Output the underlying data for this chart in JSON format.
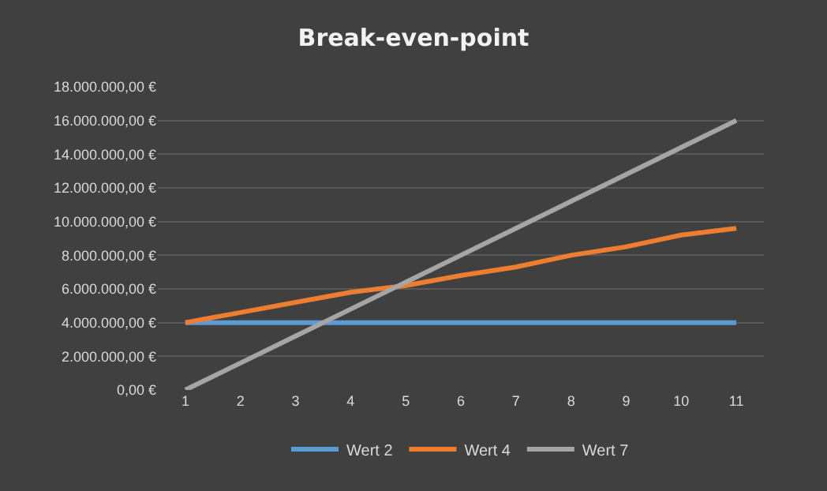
{
  "chart_data": {
    "type": "line",
    "title": "Break-even-point",
    "categories": [
      "1",
      "2",
      "3",
      "4",
      "5",
      "6",
      "7",
      "8",
      "9",
      "10",
      "11"
    ],
    "series": [
      {
        "name": "Wert 2",
        "color": "#5b9bd5",
        "values": [
          4000000,
          4000000,
          4000000,
          4000000,
          4000000,
          4000000,
          4000000,
          4000000,
          4000000,
          4000000,
          4000000
        ]
      },
      {
        "name": "Wert 4",
        "color": "#ed7d31",
        "values": [
          4000000,
          4600000,
          5200000,
          5800000,
          6200000,
          6800000,
          7300000,
          8000000,
          8500000,
          9200000,
          9600000
        ]
      },
      {
        "name": "Wert 7",
        "color": "#a5a5a5",
        "values": [
          0,
          1600000,
          3200000,
          4800000,
          6400000,
          8000000,
          9600000,
          11200000,
          12800000,
          14400000,
          16000000
        ]
      }
    ],
    "ylim": [
      0,
      18000000
    ],
    "yticks": [
      {
        "value": 0,
        "label": "0,00 €"
      },
      {
        "value": 2000000,
        "label": "2.000.000,00 €"
      },
      {
        "value": 4000000,
        "label": "4.000.000,00 €"
      },
      {
        "value": 6000000,
        "label": "6.000.000,00 €"
      },
      {
        "value": 8000000,
        "label": "8.000.000,00 €"
      },
      {
        "value": 10000000,
        "label": "10.000.000,00 €"
      },
      {
        "value": 12000000,
        "label": "12.000.000,00 €"
      },
      {
        "value": 14000000,
        "label": "14.000.000,00 €"
      },
      {
        "value": 16000000,
        "label": "16.000.000,00 €"
      },
      {
        "value": 18000000,
        "label": "18.000.000,00 €"
      }
    ],
    "grid": "y",
    "legend": "bottom",
    "marker": "none",
    "line_style": "solid"
  }
}
